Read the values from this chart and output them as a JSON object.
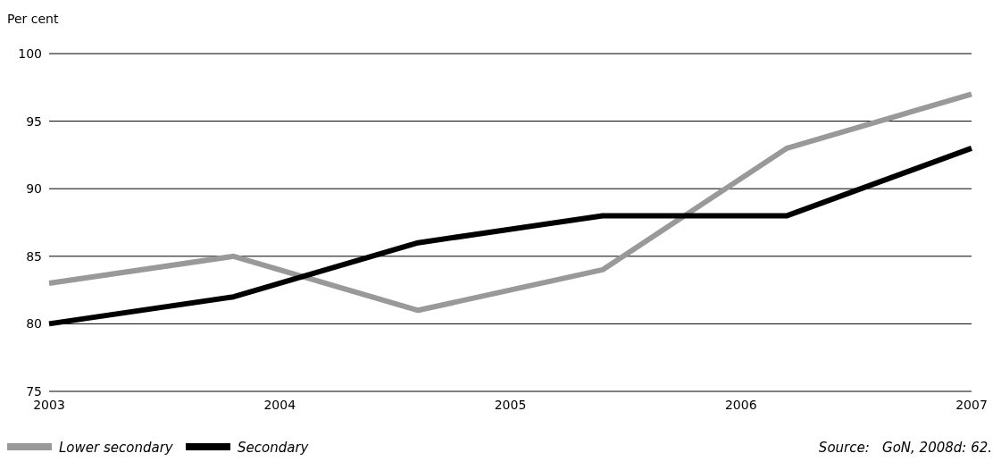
{
  "chart_data": {
    "type": "line",
    "ylabel": "Per cent",
    "x": [
      2003,
      2003.8,
      2004.6,
      2005.4,
      2006.2,
      2007
    ],
    "xlim": [
      2003,
      2007
    ],
    "xticks": [
      2003,
      2004,
      2005,
      2006,
      2007
    ],
    "ylim": [
      75,
      100
    ],
    "yticks": [
      75,
      80,
      85,
      90,
      95,
      100
    ],
    "grid": "y",
    "legend": "bottom left",
    "marker": "none",
    "line_style": "solid",
    "series": [
      {
        "name": "Lower secondary",
        "color": "#999999",
        "values": [
          83,
          85,
          81,
          84,
          93,
          97
        ]
      },
      {
        "name": "Secondary",
        "color": "#000000",
        "values": [
          80,
          82,
          86,
          88,
          88,
          93
        ]
      }
    ],
    "annotations": [
      "Source:   GoN, 2008d: 62."
    ]
  }
}
